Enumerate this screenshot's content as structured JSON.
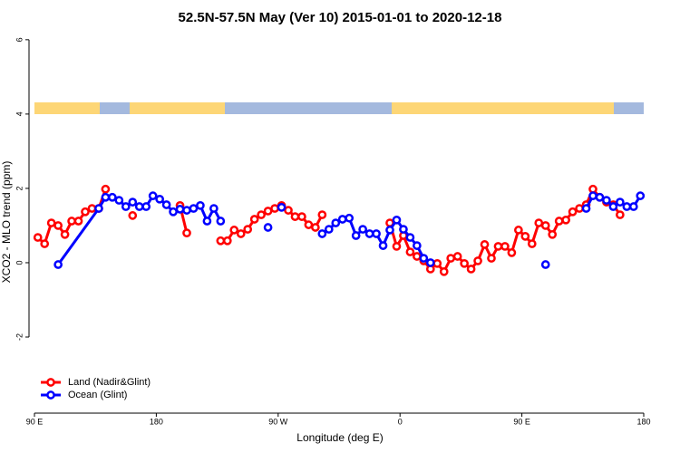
{
  "chart_data": {
    "type": "line",
    "title": "52.5N-57.5N May (Ver 10)   2015-01-01 to 2020-12-18",
    "x_label": "Longitude (deg E)",
    "y_label": "XCO2 - MLO trend (ppm)",
    "xlim": [
      90,
      540
    ],
    "ylim": [
      -3.95,
      6.24
    ],
    "xticks": [
      {
        "value": 90,
        "label": "90 E"
      },
      180,
      {
        "value": 270,
        "label": "90 W"
      },
      {
        "value": 360,
        "label": "0"
      },
      {
        "value": 450,
        "label": "90 E"
      },
      {
        "value": 540,
        "label": "180"
      }
    ],
    "yticks": [
      -2,
      0,
      2,
      4,
      6
    ],
    "legend": "bottom-left",
    "series": [
      {
        "name": "Land (Nadir&Glint)",
        "color": "#ff0000",
        "x": [
          92.5,
          97.5,
          102.5,
          107.5,
          112.5,
          117.5,
          122.5,
          127.5,
          132.5,
          137.5,
          142.5,
          147.5,
          162.5,
          167.5,
          197.5,
          202.5,
          207.5,
          227.5,
          232.5,
          237.5,
          242.5,
          247.5,
          252.5,
          257.5,
          262.5,
          267.5,
          272.5,
          277.5,
          282.5,
          287.5,
          292.5,
          297.5,
          302.5,
          307.5,
          352.5,
          357.5,
          362.5,
          367.5,
          372.5,
          377.5,
          382.5,
          387.5,
          392.5,
          397.5,
          402.5,
          407.5,
          412.5,
          417.5,
          422.5,
          427.5,
          432.5,
          437.5,
          442.5,
          447.5,
          452.5,
          457.5,
          462.5,
          467.5,
          472.5,
          477.5,
          482.5,
          487.5,
          492.5,
          497.5,
          502.5,
          507.5,
          512.5,
          517.5,
          522.5
        ],
        "values": [
          0.68,
          0.51,
          1.07,
          1.0,
          0.76,
          1.12,
          1.12,
          1.37,
          1.46,
          1.46,
          1.98,
          null,
          1.27,
          null,
          1.54,
          0.8,
          null,
          0.59,
          0.59,
          0.88,
          0.78,
          0.9,
          1.17,
          1.29,
          1.39,
          1.46,
          1.54,
          1.41,
          1.24,
          1.24,
          1.02,
          0.95,
          1.29,
          null,
          1.07,
          0.44,
          0.73,
          0.29,
          0.17,
          0.05,
          -0.17,
          -0.02,
          -0.24,
          0.12,
          0.17,
          -0.02,
          -0.17,
          0.05,
          0.49,
          0.12,
          0.44,
          0.44,
          0.27,
          0.88,
          0.71,
          0.51,
          1.07,
          1.0,
          0.76,
          1.12,
          1.15,
          1.37,
          1.46,
          1.56,
          1.98,
          1.76,
          1.63,
          1.56,
          1.29
        ]
      },
      {
        "name": "Ocean (Glint)",
        "color": "#0000ff",
        "x": [
          107.5,
          137.5,
          142.5,
          147.5,
          152.5,
          157.5,
          162.5,
          167.5,
          172.5,
          177.5,
          182.5,
          187.5,
          192.5,
          197.5,
          202.5,
          207.5,
          212.5,
          217.5,
          222.5,
          227.5,
          232.5,
          262.5,
          267.5,
          272.5,
          277.5,
          302.5,
          307.5,
          312.5,
          317.5,
          322.5,
          327.5,
          332.5,
          337.5,
          342.5,
          347.5,
          352.5,
          357.5,
          362.5,
          367.5,
          372.5,
          377.5,
          382.5,
          387.5,
          467.5,
          472.5,
          497.5,
          502.5,
          507.5,
          512.5,
          517.5,
          522.5,
          527.5,
          532.5,
          537.5
        ],
        "values": [
          -0.05,
          1.46,
          1.76,
          1.76,
          1.68,
          1.51,
          1.63,
          1.51,
          1.51,
          1.8,
          1.71,
          1.56,
          1.37,
          1.44,
          1.41,
          1.46,
          1.54,
          1.12,
          1.46,
          1.12,
          null,
          0.95,
          null,
          1.49,
          null,
          0.78,
          0.9,
          1.07,
          1.17,
          1.2,
          0.73,
          0.9,
          0.78,
          0.78,
          0.46,
          0.88,
          1.15,
          0.9,
          0.68,
          0.46,
          0.12,
          0.0,
          null,
          -0.05,
          null,
          1.46,
          1.8,
          1.76,
          1.68,
          1.51,
          1.63,
          1.51,
          1.51,
          1.8
        ]
      }
    ]
  }
}
